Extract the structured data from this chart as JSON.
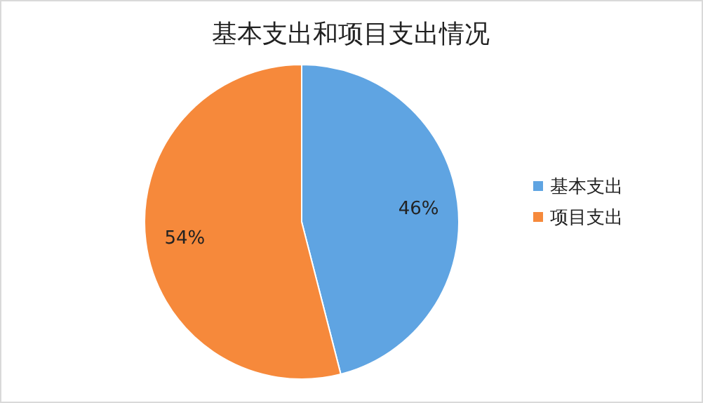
{
  "chart_data": {
    "type": "pie",
    "title": "基本支出和项目支出情况",
    "categories": [
      "基本支出",
      "项目支出"
    ],
    "values": [
      46,
      54
    ],
    "colors": [
      "#5fa4e2",
      "#f6893b"
    ],
    "value_labels": [
      "46%",
      "54%"
    ],
    "legend": "right"
  }
}
